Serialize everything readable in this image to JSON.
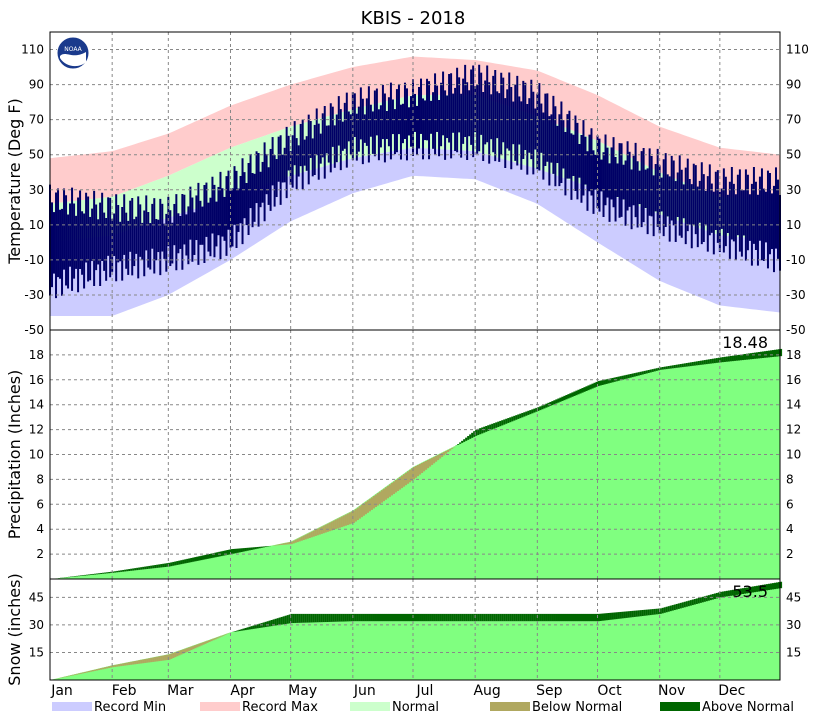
{
  "title": "KBIS - 2018",
  "colors": {
    "record_min": "#ccccff",
    "record_max": "#ffcccc",
    "normal": "#ccffcc",
    "observed": "#000066",
    "accum": "#80ff80",
    "below_normal": "#b0a860",
    "above_normal": "#006600",
    "grid": "#888888"
  },
  "logo": {
    "name": "noaa-logo",
    "text": "NOAA"
  },
  "months": [
    "Jan",
    "Feb",
    "Mar",
    "Apr",
    "May",
    "Jun",
    "Jul",
    "Aug",
    "Sep",
    "Oct",
    "Nov",
    "Dec"
  ],
  "legend": [
    {
      "label": "Record Min",
      "color": "#ccccff"
    },
    {
      "label": "Record Max",
      "color": "#ffcccc"
    },
    {
      "label": "Normal",
      "color": "#ccffcc"
    },
    {
      "label": "Below Normal",
      "color": "#b0a860"
    },
    {
      "label": "Above Normal",
      "color": "#006600"
    }
  ],
  "chart_data": [
    {
      "type": "area",
      "name": "temperature",
      "ylabel": "Temperature (Deg F)",
      "ylim": [
        -50,
        120
      ],
      "yticks": [
        -50,
        -30,
        -10,
        10,
        30,
        50,
        70,
        90,
        110
      ],
      "grid": true,
      "x": [
        1,
        32,
        60,
        91,
        121,
        152,
        182,
        213,
        244,
        274,
        305,
        335,
        365
      ],
      "record_max": [
        48,
        52,
        62,
        78,
        90,
        100,
        106,
        104,
        98,
        84,
        66,
        54,
        50
      ],
      "record_min": [
        -42,
        -42,
        -30,
        -10,
        12,
        28,
        38,
        36,
        22,
        0,
        -22,
        -36,
        -40
      ],
      "normal_high": [
        22,
        26,
        38,
        54,
        66,
        76,
        84,
        84,
        72,
        58,
        40,
        26,
        23
      ],
      "normal_low": [
        0,
        4,
        14,
        26,
        38,
        48,
        54,
        52,
        42,
        30,
        16,
        4,
        1
      ],
      "observed_high": [
        25,
        20,
        18,
        35,
        60,
        80,
        85,
        95,
        84,
        55,
        45,
        35,
        35
      ],
      "observed_low": [
        -25,
        -15,
        -10,
        0,
        35,
        52,
        55,
        55,
        45,
        22,
        10,
        0,
        -10
      ]
    },
    {
      "type": "area",
      "name": "precipitation",
      "ylabel": "Precipitation (Inches)",
      "ylim": [
        0,
        20
      ],
      "yticks": [
        2,
        4,
        6,
        8,
        10,
        12,
        14,
        16,
        18
      ],
      "grid": true,
      "annotation": "18.48",
      "x": [
        1,
        32,
        60,
        91,
        121,
        152,
        182,
        213,
        244,
        274,
        305,
        335,
        365
      ],
      "normal_accum": [
        0.0,
        0.5,
        1.0,
        2.0,
        3.0,
        5.5,
        9.0,
        11.5,
        13.5,
        15.5,
        16.8,
        17.4,
        17.9
      ],
      "observed_accum": [
        0.0,
        0.6,
        1.3,
        2.4,
        2.8,
        4.5,
        8.0,
        12.0,
        13.8,
        15.9,
        17.0,
        17.8,
        18.48
      ]
    },
    {
      "type": "area",
      "name": "snow",
      "ylabel": "Snow (inches)",
      "ylim": [
        0,
        55
      ],
      "yticks": [
        15,
        30,
        45
      ],
      "grid": true,
      "annotation": "53.5",
      "x": [
        1,
        32,
        60,
        91,
        121,
        152,
        182,
        213,
        244,
        274,
        305,
        335,
        365
      ],
      "normal_accum": [
        0,
        8,
        14,
        26,
        31,
        32,
        32,
        32,
        32,
        32,
        36,
        45,
        50
      ],
      "observed_accum": [
        0,
        7,
        11,
        26,
        36,
        36,
        36,
        36,
        36,
        36,
        39,
        48,
        53.5
      ]
    }
  ]
}
